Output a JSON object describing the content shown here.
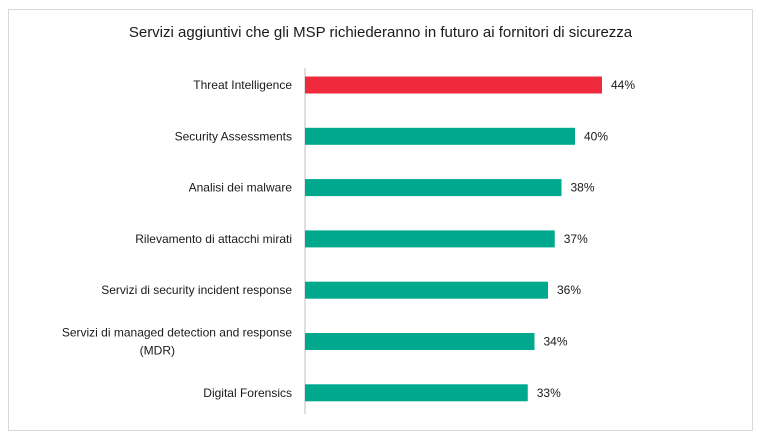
{
  "chart_data": {
    "type": "bar",
    "orientation": "horizontal",
    "title": "Servizi aggiuntivi che gli MSP richiederanno in futuro ai fornitori di sicurezza",
    "categories": [
      "Threat Intelligence",
      "Security Assessments",
      "Analisi dei malware",
      "Rilevamento di attacchi mirati",
      "Servizi di security incident response",
      "Servizi di managed detection and response (MDR)",
      "Digital Forensics"
    ],
    "category_lines": [
      [
        "Threat Intelligence"
      ],
      [
        "Security Assessments"
      ],
      [
        "Analisi dei malware"
      ],
      [
        "Rilevamento di attacchi mirati"
      ],
      [
        "Servizi di security incident response"
      ],
      [
        "Servizi di managed detection and response",
        "(MDR)"
      ],
      [
        "Digital Forensics"
      ]
    ],
    "values": [
      44,
      40,
      38,
      37,
      36,
      34,
      33
    ],
    "value_labels": [
      "44%",
      "40%",
      "38%",
      "37%",
      "36%",
      "34%",
      "33%"
    ],
    "unit": "%",
    "xlim": [
      0,
      50
    ],
    "grid": false,
    "legend": "none",
    "colors": {
      "highlight": "#ee2a3c",
      "default": "#00a88e",
      "axis": "#bfbfbf"
    },
    "highlight_index": 0
  }
}
